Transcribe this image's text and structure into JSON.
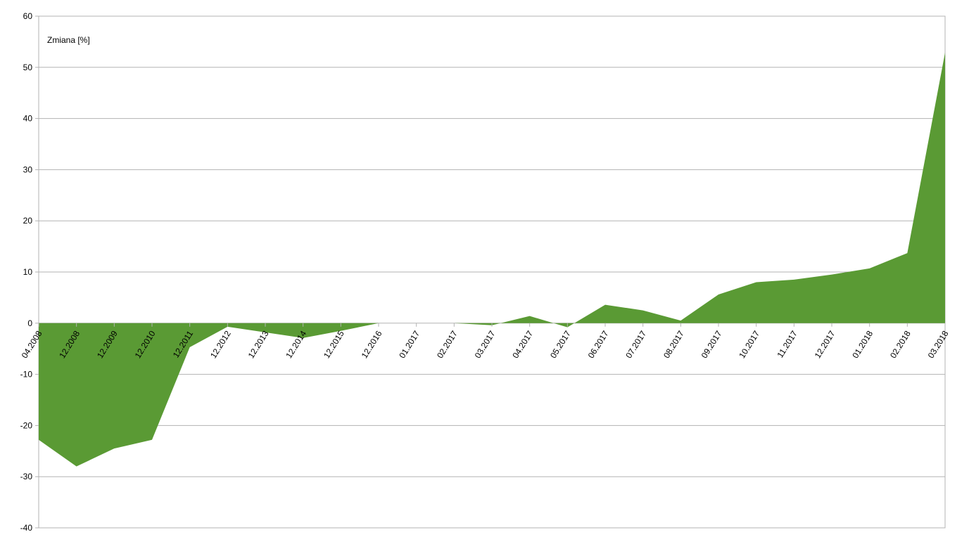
{
  "chart_data": {
    "type": "area",
    "annotation": "Zmiana [%]",
    "categories": [
      "04.2008",
      "12.2008",
      "12.2009",
      "12.2010",
      "12.2011",
      "12.2012",
      "12.2013",
      "12.2014",
      "12.2015",
      "12.2016",
      "01.2017",
      "02.2017",
      "03.2017",
      "04.2017",
      "05.2017",
      "06.2017",
      "07.2017",
      "08.2017",
      "09.2017",
      "10.2017",
      "11.2017",
      "12.2017",
      "01.2018",
      "02.2018",
      "03.2018"
    ],
    "values": [
      -22.8,
      -28.0,
      -24.5,
      -22.8,
      -4.7,
      -0.7,
      -1.8,
      -2.9,
      -1.5,
      0,
      0,
      0,
      -0.4,
      1.4,
      -0.8,
      3.6,
      2.5,
      0.5,
      5.6,
      8.0,
      8.5,
      9.5,
      10.7,
      13.7,
      52.9
    ],
    "color": "#5a9a34",
    "ylim": [
      -40,
      60
    ],
    "yticks": [
      -40,
      -30,
      -20,
      -10,
      0,
      10,
      20,
      30,
      40,
      50,
      60
    ],
    "grid": true
  }
}
